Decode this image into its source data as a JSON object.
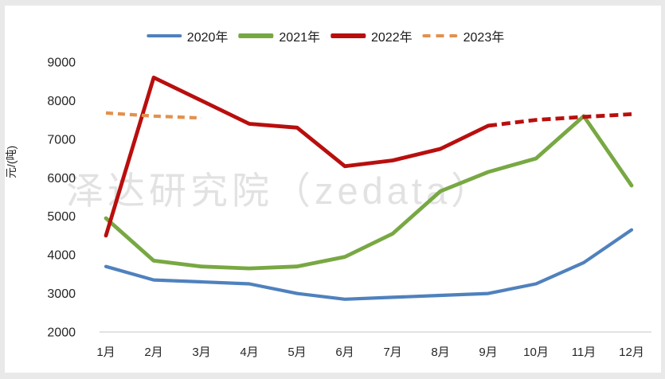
{
  "watermark": {
    "text": "泽达研究院（zedata）",
    "color": "#e2e2e2"
  },
  "axis": {
    "line_color": "#d9d9d9",
    "text_color": "#262626"
  },
  "chart_data": {
    "type": "line",
    "title": "",
    "xlabel": "",
    "ylabel": "元/(吨)",
    "ylim": [
      2000,
      9000
    ],
    "yticks": [
      2000,
      3000,
      4000,
      5000,
      6000,
      7000,
      8000,
      9000
    ],
    "categories": [
      "1月",
      "2月",
      "3月",
      "4月",
      "5月",
      "6月",
      "7月",
      "8月",
      "9月",
      "10月",
      "11月",
      "12月"
    ],
    "grid": false,
    "legend_position": "top-center",
    "series": [
      {
        "name": "2020年",
        "color": "#4f81bd",
        "style": "solid",
        "stroke_width": 4.2,
        "values": [
          3700,
          3350,
          3300,
          3250,
          3000,
          2850,
          2900,
          2950,
          3000,
          3250,
          3800,
          4650
        ]
      },
      {
        "name": "2021年",
        "color": "#78a843",
        "style": "solid",
        "stroke_width": 4.8,
        "values": [
          4950,
          3850,
          3700,
          3650,
          3700,
          3950,
          4550,
          5650,
          6150,
          6500,
          7600,
          5800
        ]
      },
      {
        "name": "2022年",
        "color": "#b80f0e",
        "style": "solid",
        "dashed_from_index": 8,
        "stroke_width": 4.8,
        "values": [
          4500,
          8600,
          8000,
          7400,
          7300,
          6300,
          6450,
          6750,
          7350,
          7500,
          7580,
          7650
        ]
      },
      {
        "name": "2023年",
        "color": "#e2914e",
        "style": "dashed",
        "stroke_width": 4.2,
        "values": [
          7680,
          7600,
          7550,
          null,
          null,
          null,
          null,
          null,
          null,
          null,
          null,
          null
        ]
      }
    ]
  }
}
